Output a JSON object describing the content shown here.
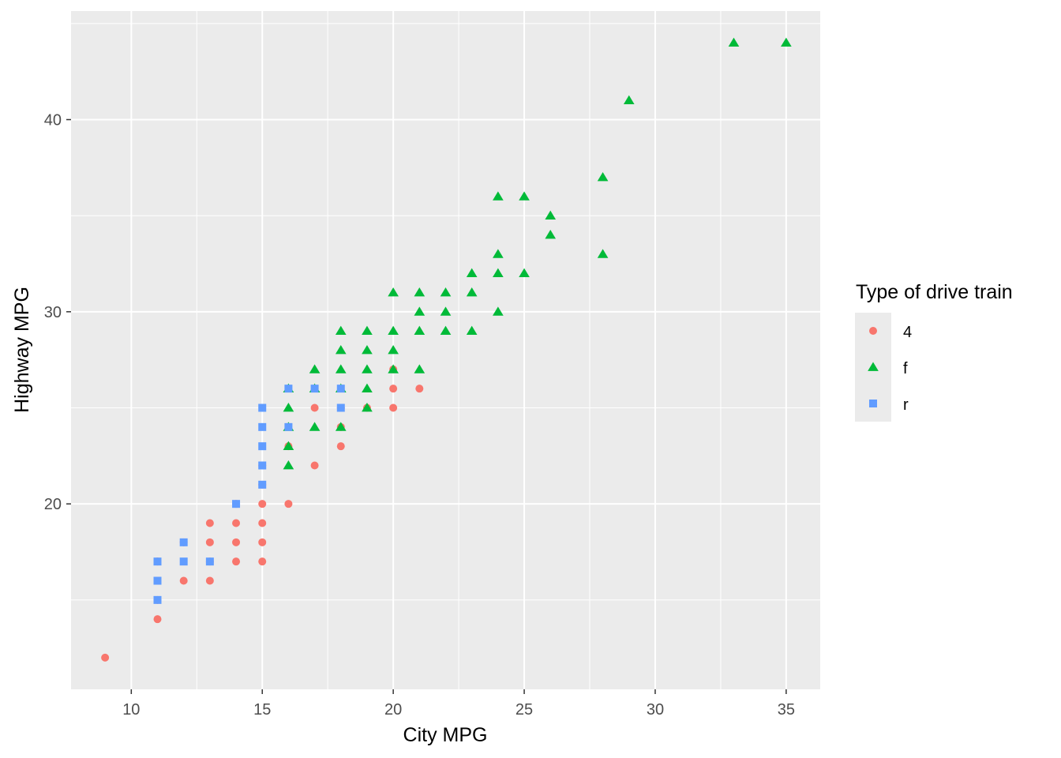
{
  "chart_data": {
    "type": "scatter",
    "xlabel": "City MPG",
    "ylabel": "Highway MPG",
    "xlim": [
      7.7,
      36.3
    ],
    "ylim": [
      10.35,
      45.65
    ],
    "x_ticks": [
      10,
      15,
      20,
      25,
      30,
      35
    ],
    "y_ticks": [
      20,
      30,
      40
    ],
    "grid": true,
    "legend": {
      "title": "Type of drive train",
      "position": "right",
      "entries": [
        {
          "label": "4",
          "shape": "circle",
          "color": "#F8766D"
        },
        {
          "label": "f",
          "shape": "triangle",
          "color": "#00BA38"
        },
        {
          "label": "r",
          "shape": "square",
          "color": "#619CFF"
        }
      ]
    },
    "series": [
      {
        "name": "4",
        "shape": "circle",
        "color": "#F8766D",
        "points": [
          [
            9,
            12
          ],
          [
            11,
            14
          ],
          [
            11,
            15
          ],
          [
            11,
            17
          ],
          [
            12,
            16
          ],
          [
            12,
            18
          ],
          [
            13,
            16
          ],
          [
            13,
            17
          ],
          [
            13,
            18
          ],
          [
            13,
            19
          ],
          [
            14,
            17
          ],
          [
            14,
            18
          ],
          [
            14,
            19
          ],
          [
            14,
            20
          ],
          [
            15,
            17
          ],
          [
            15,
            18
          ],
          [
            15,
            19
          ],
          [
            15,
            20
          ],
          [
            15,
            21
          ],
          [
            15,
            22
          ],
          [
            16,
            20
          ],
          [
            16,
            23
          ],
          [
            17,
            22
          ],
          [
            17,
            25
          ],
          [
            18,
            23
          ],
          [
            18,
            24
          ],
          [
            18,
            25
          ],
          [
            19,
            25
          ],
          [
            20,
            25
          ],
          [
            20,
            26
          ],
          [
            20,
            27
          ],
          [
            21,
            26
          ]
        ]
      },
      {
        "name": "f",
        "shape": "triangle",
        "color": "#00BA38",
        "points": [
          [
            16,
            22
          ],
          [
            16,
            23
          ],
          [
            16,
            24
          ],
          [
            16,
            25
          ],
          [
            16,
            26
          ],
          [
            17,
            24
          ],
          [
            17,
            26
          ],
          [
            17,
            27
          ],
          [
            18,
            24
          ],
          [
            18,
            26
          ],
          [
            18,
            27
          ],
          [
            18,
            28
          ],
          [
            18,
            29
          ],
          [
            19,
            25
          ],
          [
            19,
            26
          ],
          [
            19,
            27
          ],
          [
            19,
            28
          ],
          [
            19,
            29
          ],
          [
            20,
            27
          ],
          [
            20,
            28
          ],
          [
            20,
            29
          ],
          [
            20,
            31
          ],
          [
            21,
            27
          ],
          [
            21,
            29
          ],
          [
            21,
            30
          ],
          [
            21,
            31
          ],
          [
            22,
            29
          ],
          [
            22,
            30
          ],
          [
            22,
            31
          ],
          [
            23,
            29
          ],
          [
            23,
            31
          ],
          [
            23,
            32
          ],
          [
            24,
            30
          ],
          [
            24,
            32
          ],
          [
            24,
            33
          ],
          [
            24,
            36
          ],
          [
            25,
            32
          ],
          [
            25,
            36
          ],
          [
            26,
            34
          ],
          [
            26,
            35
          ],
          [
            28,
            33
          ],
          [
            28,
            37
          ],
          [
            29,
            41
          ],
          [
            33,
            44
          ],
          [
            35,
            44
          ]
        ]
      },
      {
        "name": "r",
        "shape": "square",
        "color": "#619CFF",
        "points": [
          [
            11,
            15
          ],
          [
            11,
            16
          ],
          [
            11,
            17
          ],
          [
            12,
            17
          ],
          [
            12,
            18
          ],
          [
            13,
            17
          ],
          [
            14,
            20
          ],
          [
            15,
            21
          ],
          [
            15,
            22
          ],
          [
            15,
            23
          ],
          [
            15,
            24
          ],
          [
            15,
            25
          ],
          [
            16,
            24
          ],
          [
            16,
            26
          ],
          [
            17,
            26
          ],
          [
            18,
            25
          ],
          [
            18,
            26
          ]
        ]
      }
    ]
  }
}
